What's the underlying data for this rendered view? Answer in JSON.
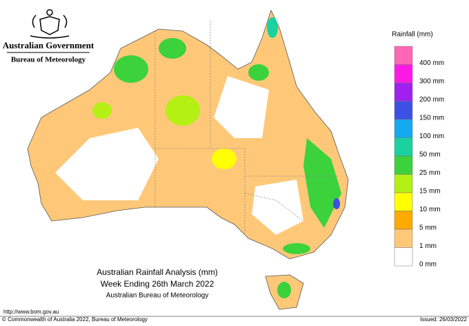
{
  "header": {
    "government": "Australian Government",
    "agency": "Bureau of Meteorology"
  },
  "legend": {
    "title": "Rainfall (mm)",
    "items": [
      {
        "label": "400 mm",
        "color": "#ff66b3"
      },
      {
        "label": "300 mm",
        "color": "#ff19e6"
      },
      {
        "label": "200 mm",
        "color": "#a020f0"
      },
      {
        "label": "150 mm",
        "color": "#3c50e6"
      },
      {
        "label": "100 mm",
        "color": "#14aaf0"
      },
      {
        "label": "50 mm",
        "color": "#19d2a0"
      },
      {
        "label": "25 mm",
        "color": "#3cd23c"
      },
      {
        "label": "15 mm",
        "color": "#b4f014"
      },
      {
        "label": "10 mm",
        "color": "#ffff00"
      },
      {
        "label": "5 mm",
        "color": "#ffaa00"
      },
      {
        "label": "1 mm",
        "color": "#ffc878"
      },
      {
        "label": "0 mm",
        "color": "#ffffff"
      }
    ]
  },
  "caption": {
    "line1": "Australian Rainfall Analysis (mm)",
    "line2": "Week Ending 26th March 2022",
    "line3": "Australian Bureau of Meteorology"
  },
  "footer": {
    "url": "http://www.bom.gov.au",
    "copyright": "© Commonwealth of Australia 2022, Bureau of Meteorology",
    "issued": "Issued: 26/03/2022"
  }
}
